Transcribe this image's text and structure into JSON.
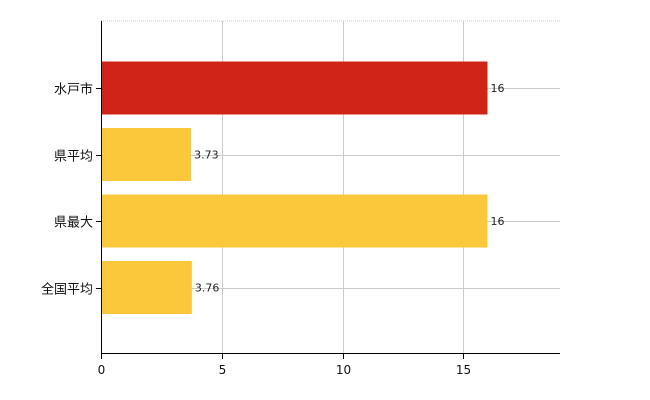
{
  "chart_data": {
    "type": "bar",
    "orientation": "horizontal",
    "categories": [
      "水戸市",
      "県平均",
      "県最大",
      "全国平均"
    ],
    "values": [
      16,
      3.73,
      16,
      3.76
    ],
    "value_labels": [
      "16",
      "3.73",
      "16",
      "3.76"
    ],
    "colors": [
      "#d02418",
      "#fbc83c",
      "#fbc83c",
      "#fbc83c"
    ],
    "xlim": [
      0,
      19
    ],
    "xticks": [
      0,
      5,
      10,
      15
    ],
    "xtick_labels": [
      "0",
      "5",
      "10",
      "15"
    ],
    "grid": true,
    "gridline_color": "#cccccc",
    "axis_color": "#000000",
    "title": "",
    "xlabel": "",
    "ylabel": ""
  }
}
